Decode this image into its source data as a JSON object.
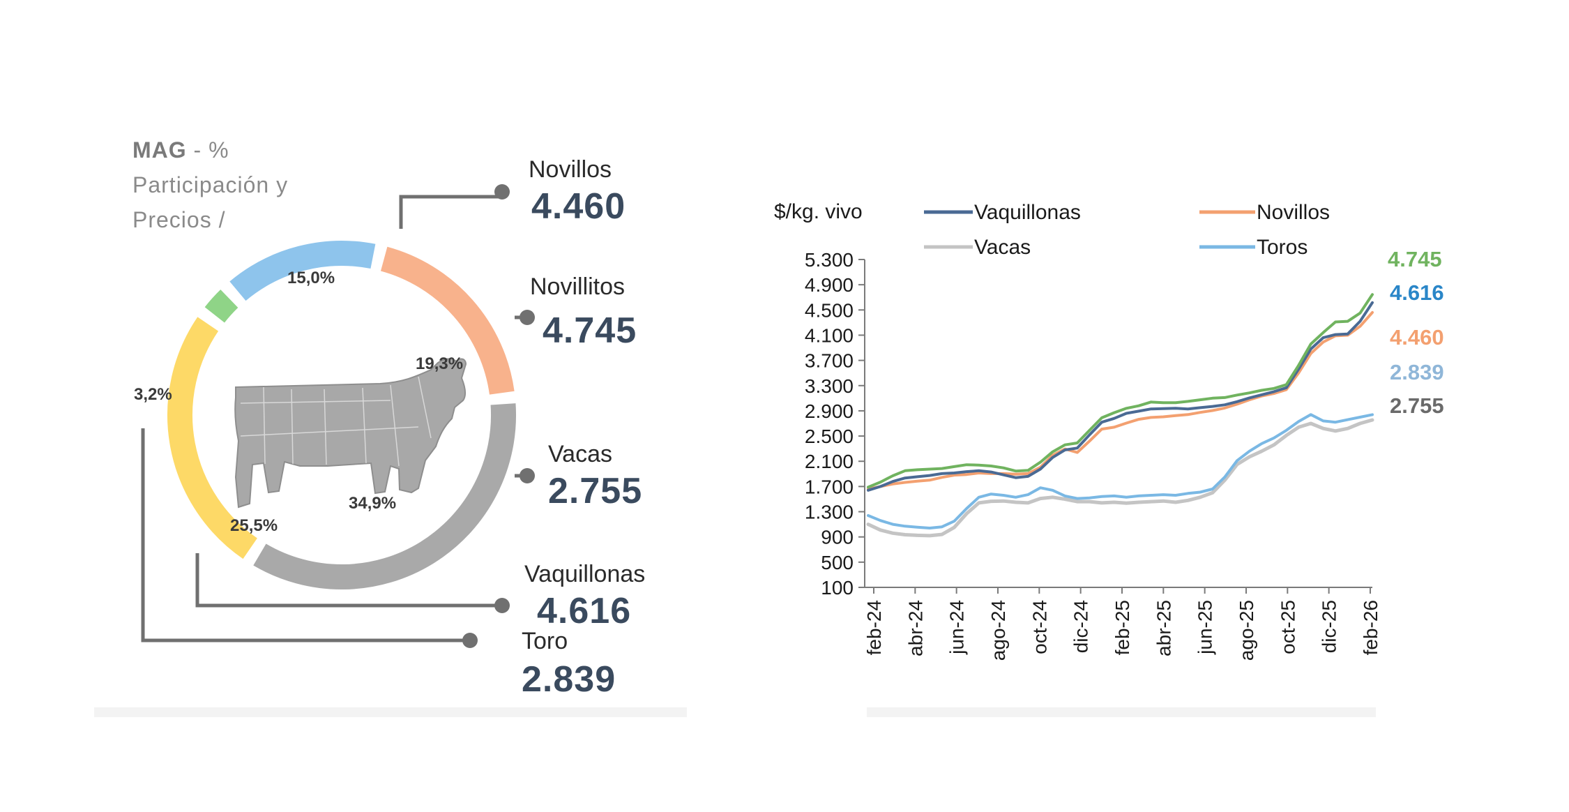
{
  "left_panel": {
    "header_bold": "MAG",
    "header_rest": " - %",
    "header_line2": "Participación y",
    "header_line3": "Precios /",
    "segments": [
      {
        "key": "novillos",
        "pct_label": "15,0%",
        "share": 15.0,
        "color": "#8ec4ec"
      },
      {
        "key": "novillitos",
        "pct_label": "19,3%",
        "share": 19.3,
        "color": "#f8b28c"
      },
      {
        "key": "vacas",
        "pct_label": "34,9%",
        "share": 34.9,
        "color": "#a9a9a9"
      },
      {
        "key": "vaquillonas",
        "pct_label": "25,5%",
        "share": 25.5,
        "color": "#fdd967"
      },
      {
        "key": "toro",
        "pct_label": "3,2%",
        "share": 3.2,
        "color": "#8fd487"
      }
    ],
    "callouts": {
      "novillos": {
        "name": "Novillos",
        "price": "4.460"
      },
      "novillitos": {
        "name": "Novillitos",
        "price": "4.745"
      },
      "vacas": {
        "name": "Vacas",
        "price": "2.755"
      },
      "vaquillonas": {
        "name": "Vaquillonas",
        "price": "4.616"
      },
      "toro": {
        "name": "Toro",
        "price": "2.839"
      }
    }
  },
  "chart_data": [
    {
      "type": "pie",
      "title": "MAG - % Participación y Precios /",
      "categories": [
        "Novillos",
        "Novillitos",
        "Vacas",
        "Vaquillonas",
        "Toro"
      ],
      "values": [
        15.0,
        19.3,
        34.9,
        25.5,
        3.2
      ],
      "prices": [
        4460,
        4745,
        2755,
        4616,
        2839
      ]
    },
    {
      "type": "line",
      "ylabel": "$/kg. vivo",
      "ylim": [
        100,
        5300
      ],
      "yticks": [
        100,
        500,
        900,
        1300,
        1700,
        2100,
        2500,
        2900,
        3300,
        3700,
        4100,
        4500,
        4900,
        5300
      ],
      "ytick_labels": [
        "100",
        "500",
        "900",
        "1.300",
        "1.700",
        "2.100",
        "2.500",
        "2.900",
        "3.300",
        "3.700",
        "4.100",
        "4.500",
        "4.900",
        "5.300"
      ],
      "xtick_labels": [
        "feb-24",
        "abr-24",
        "jun-24",
        "ago-24",
        "oct-24",
        "dic-24",
        "feb-25",
        "abr-25",
        "jun-25",
        "ago-25",
        "oct-25",
        "dic-25",
        "feb-26"
      ],
      "series": [
        {
          "name": "Novillitos",
          "legend": false,
          "color": "#70b35f",
          "end_label": "4.745",
          "values": [
            1690,
            1770,
            1870,
            1950,
            1965,
            1975,
            1985,
            2015,
            2045,
            2040,
            2025,
            1995,
            1945,
            1955,
            2085,
            2250,
            2360,
            2390,
            2590,
            2790,
            2870,
            2940,
            2980,
            3040,
            3030,
            3030,
            3050,
            3075,
            3100,
            3110,
            3150,
            3185,
            3225,
            3255,
            3315,
            3620,
            3960,
            4140,
            4310,
            4320,
            4450,
            4745
          ]
        },
        {
          "name": "Vaquillonas",
          "legend": true,
          "color": "#4a6a94",
          "end_label": "4.616",
          "end_label_color": "#2a86c8",
          "values": [
            1640,
            1700,
            1780,
            1835,
            1855,
            1875,
            1905,
            1915,
            1935,
            1950,
            1930,
            1885,
            1840,
            1860,
            1975,
            2160,
            2280,
            2310,
            2520,
            2720,
            2780,
            2860,
            2895,
            2930,
            2935,
            2940,
            2930,
            2950,
            2970,
            2995,
            3045,
            3105,
            3155,
            3205,
            3265,
            3560,
            3880,
            4060,
            4110,
            4120,
            4320,
            4616
          ]
        },
        {
          "name": "Novillos",
          "legend": true,
          "color": "#f3a070",
          "end_label": "4.460",
          "values": [
            1660,
            1700,
            1740,
            1765,
            1785,
            1800,
            1845,
            1880,
            1890,
            1915,
            1905,
            1905,
            1895,
            1905,
            2005,
            2195,
            2295,
            2240,
            2420,
            2610,
            2640,
            2705,
            2765,
            2795,
            2805,
            2825,
            2840,
            2875,
            2905,
            2945,
            3005,
            3075,
            3135,
            3175,
            3235,
            3500,
            3810,
            3990,
            4090,
            4100,
            4240,
            4460
          ]
        },
        {
          "name": "Vacas",
          "legend": true,
          "color": "#c4c4c4",
          "end_label": "2.755",
          "end_label_color": "#6a6a6a",
          "values": [
            1100,
            1010,
            960,
            935,
            925,
            920,
            940,
            1050,
            1270,
            1440,
            1465,
            1470,
            1450,
            1440,
            1510,
            1530,
            1500,
            1460,
            1460,
            1440,
            1450,
            1435,
            1450,
            1460,
            1470,
            1450,
            1480,
            1530,
            1600,
            1800,
            2050,
            2170,
            2260,
            2360,
            2510,
            2640,
            2700,
            2620,
            2580,
            2620,
            2700,
            2755
          ]
        },
        {
          "name": "Toros",
          "legend": true,
          "color": "#7ab8e4",
          "end_label": "2.839",
          "end_label_color": "#8fb6d8",
          "values": [
            1240,
            1160,
            1100,
            1070,
            1055,
            1040,
            1060,
            1150,
            1350,
            1530,
            1580,
            1560,
            1530,
            1570,
            1680,
            1640,
            1550,
            1510,
            1520,
            1540,
            1550,
            1530,
            1550,
            1560,
            1570,
            1560,
            1590,
            1610,
            1660,
            1850,
            2110,
            2260,
            2380,
            2470,
            2590,
            2730,
            2840,
            2740,
            2720,
            2760,
            2800,
            2839
          ]
        }
      ]
    }
  ]
}
